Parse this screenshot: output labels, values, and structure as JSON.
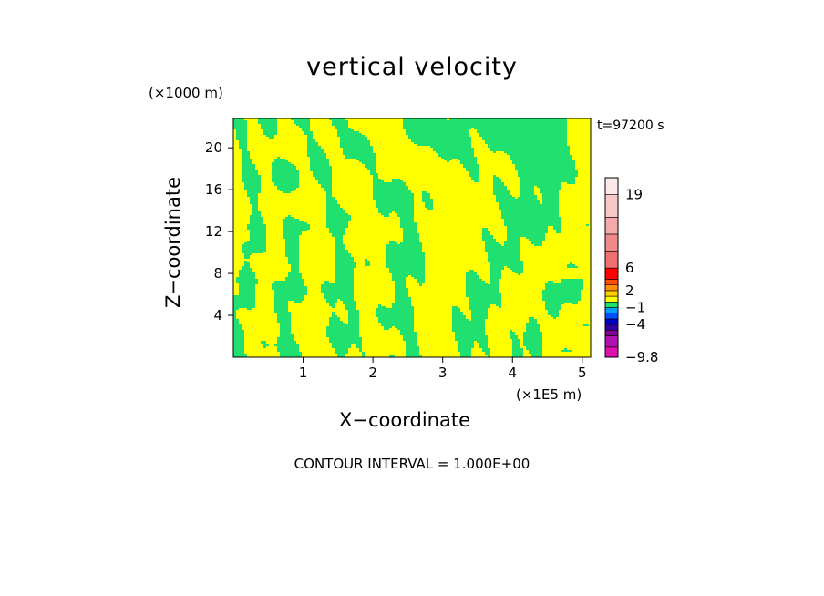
{
  "chart_data": {
    "type": "heatmap",
    "title": "vertical velocity",
    "xlabel": "X−coordinate",
    "ylabel": "Z−coordinate",
    "x_unit_label": "(×1E5 m)",
    "y_unit_label": "(×1000 m)",
    "time_label": "t=97200 s",
    "footer": "CONTOUR INTERVAL = 1.000E+00",
    "xlim": [
      0,
      5.12
    ],
    "ylim": [
      0,
      22.8
    ],
    "x_ticks": [
      1,
      2,
      3,
      4,
      5
    ],
    "y_ticks": [
      4,
      8,
      12,
      16,
      20
    ],
    "colorbar": {
      "labels": [
        {
          "text": "19",
          "value": 19
        },
        {
          "text": "6",
          "value": 6
        },
        {
          "text": "2",
          "value": 2
        },
        {
          "text": "−1",
          "value": -1
        },
        {
          "text": "−4",
          "value": -4
        },
        {
          "text": "−9.8",
          "value": -9.8
        }
      ],
      "levels": [
        {
          "from": -9.8,
          "to": -8,
          "color": "#e010b0"
        },
        {
          "from": -8,
          "to": -6,
          "color": "#b010b0"
        },
        {
          "from": -6,
          "to": -5,
          "color": "#800090"
        },
        {
          "from": -5,
          "to": -4,
          "color": "#3000a0"
        },
        {
          "from": -4,
          "to": -3,
          "color": "#0000c0"
        },
        {
          "from": -3,
          "to": -2,
          "color": "#0050ff"
        },
        {
          "from": -2,
          "to": -1,
          "color": "#00a0ff"
        },
        {
          "from": -1,
          "to": 0,
          "color": "#20e070"
        },
        {
          "from": 0,
          "to": 1,
          "color": "#ffff00"
        },
        {
          "from": 1,
          "to": 2,
          "color": "#ffd000"
        },
        {
          "from": 2,
          "to": 3,
          "color": "#ff9000"
        },
        {
          "from": 3,
          "to": 4,
          "color": "#ff5000"
        },
        {
          "from": 4,
          "to": 6,
          "color": "#ff0000"
        },
        {
          "from": 6,
          "to": 9,
          "color": "#f07070"
        },
        {
          "from": 9,
          "to": 12,
          "color": "#f08a8a"
        },
        {
          "from": 12,
          "to": 15,
          "color": "#f4aaaa"
        },
        {
          "from": 15,
          "to": 19,
          "color": "#f8c8c8"
        },
        {
          "from": 19,
          "to": 22,
          "color": "#fce8e8"
        }
      ]
    },
    "field_colors": {
      "positive": "#ffff00",
      "negative": "#20e070"
    }
  }
}
